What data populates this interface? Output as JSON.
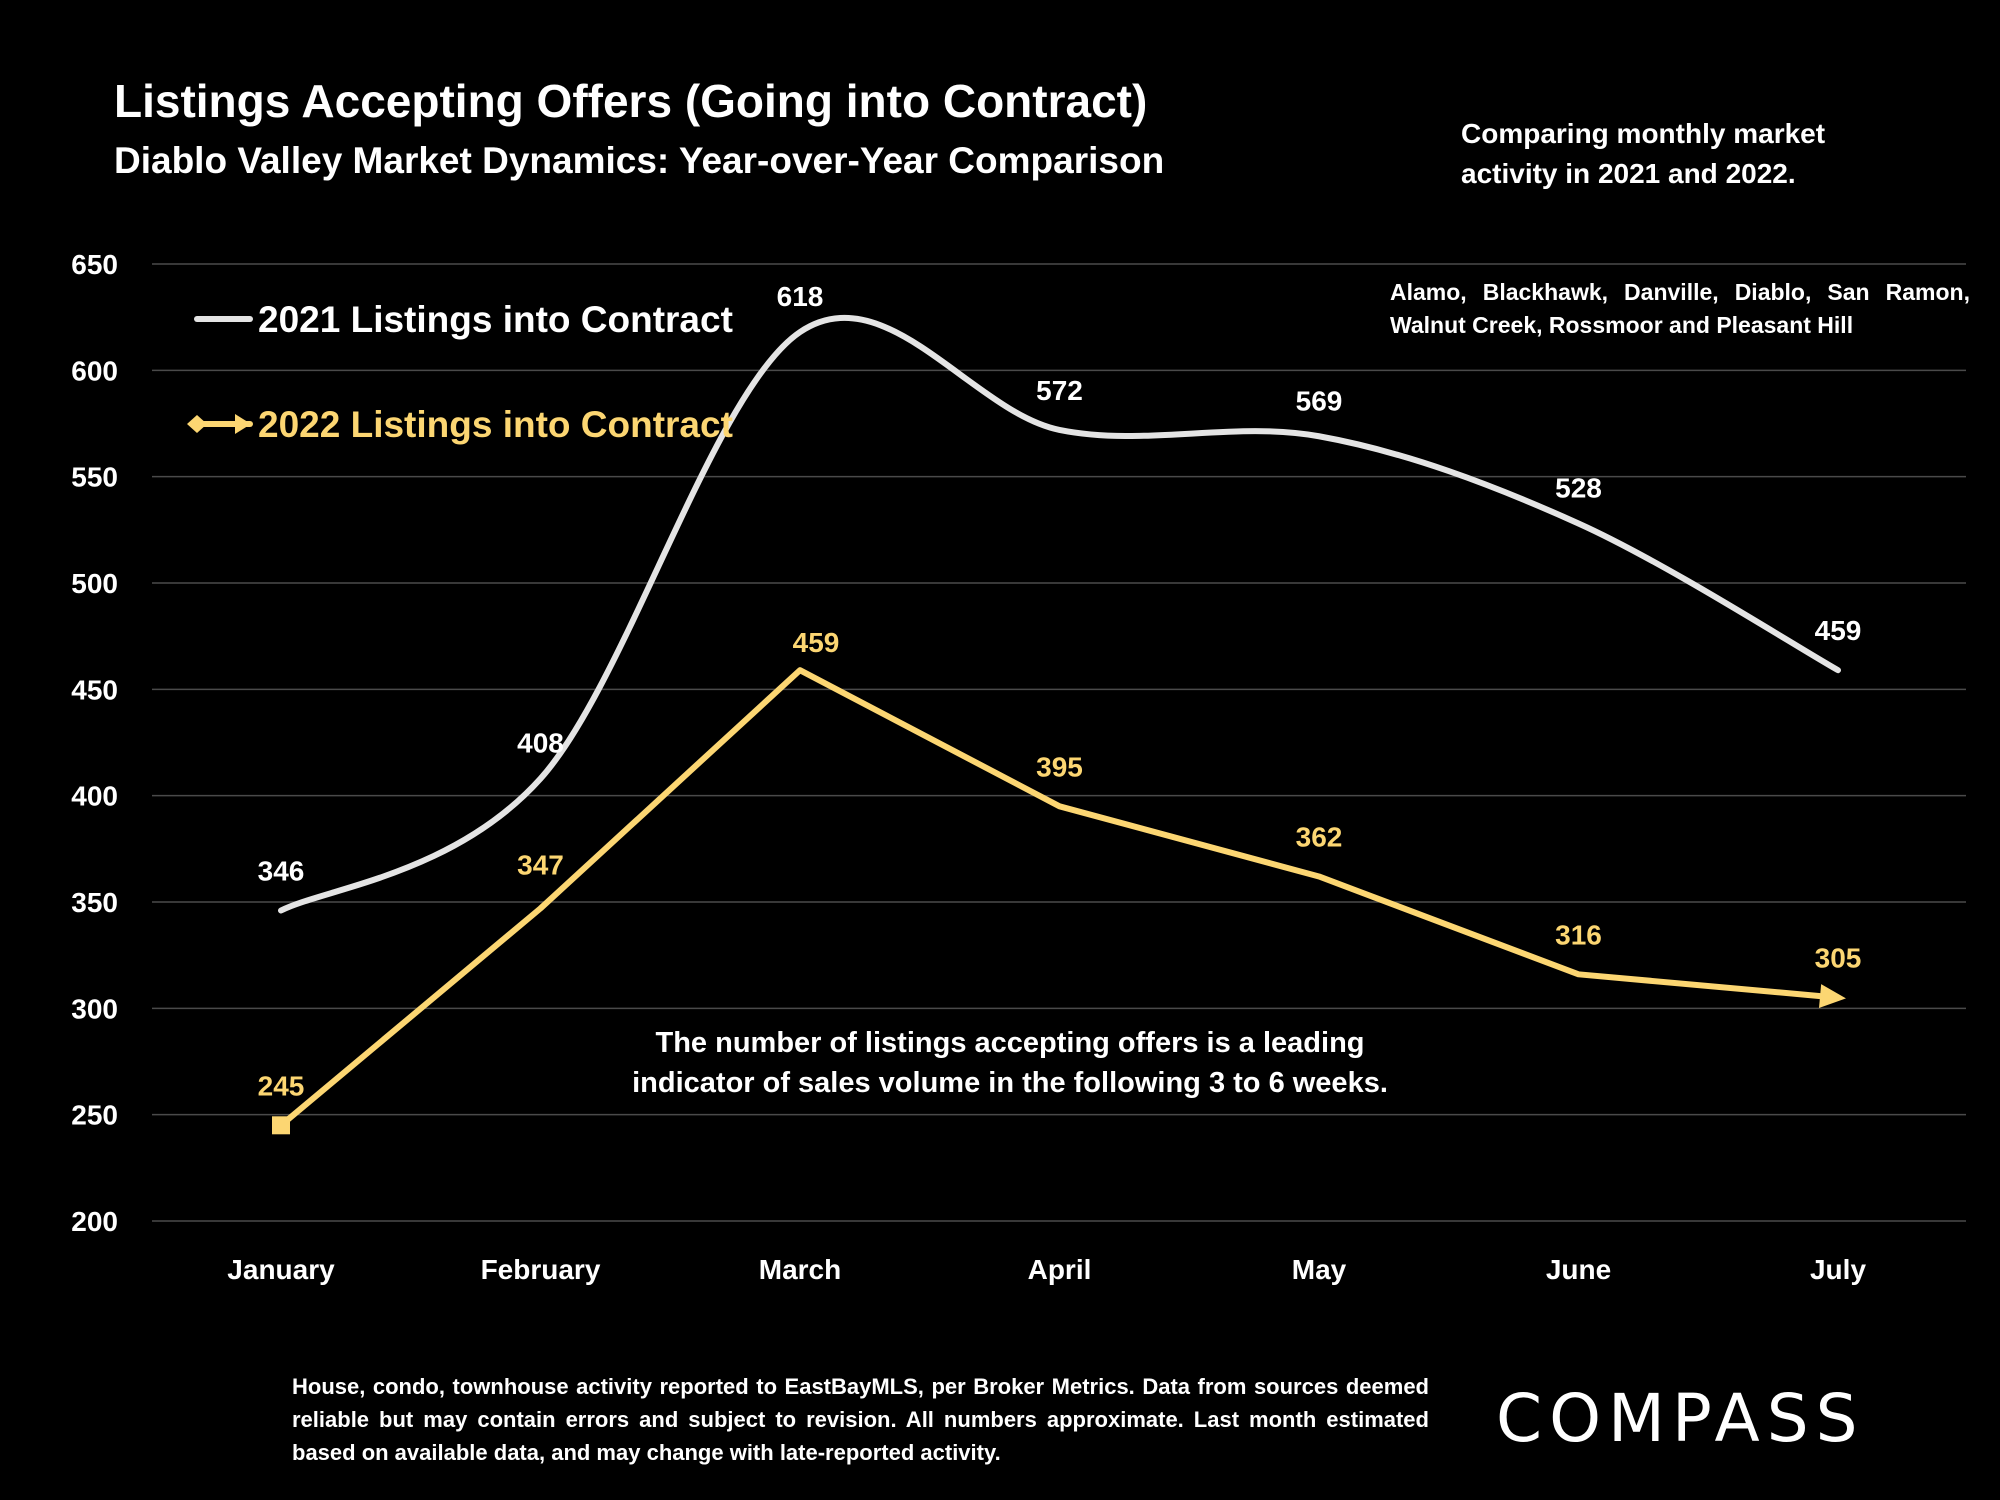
{
  "header": {
    "title": "Listings Accepting Offers (Going into Contract)",
    "subtitle": "Diablo Valley Market Dynamics: Year-over-Year Comparison",
    "intro_note": "Comparing monthly market activity in 2021 and 2022.",
    "area_note": "Alamo, Blackhawk, Danville, Diablo, San Ramon, Walnut Creek, Rossmoor and Pleasant Hill"
  },
  "footer": {
    "footnote": "House, condo, townhouse activity reported to EastBayMLS, per Broker Metrics. Data from sources deemed reliable but may contain errors and subject to revision. All numbers approximate. Last month estimated based on available data, and may change with late-reported activity.",
    "logo_text": "COMPASS"
  },
  "colors": {
    "background": "#000000",
    "series_2021": "#e4e4e4",
    "series_2022": "#fcd672",
    "grid": "#4a4a4a",
    "text": "#ffffff"
  },
  "chart_data": {
    "type": "line",
    "categories": [
      "January",
      "February",
      "March",
      "April",
      "May",
      "June",
      "July"
    ],
    "series": [
      {
        "name": "2021 Listings into Contract",
        "values": [
          346,
          408,
          618,
          572,
          569,
          528,
          459
        ],
        "smooth": true,
        "color": "#e4e4e4"
      },
      {
        "name": "2022 Listings into Contract",
        "values": [
          245,
          347,
          459,
          395,
          362,
          316,
          305
        ],
        "smooth": false,
        "color": "#fcd672"
      }
    ],
    "ylim": [
      200,
      650
    ],
    "yticks": [
      200,
      250,
      300,
      350,
      400,
      450,
      500,
      550,
      600,
      650
    ],
    "grid": true,
    "legend": "top-left",
    "annotation": [
      "The number of listings accepting offers is a leading",
      "indicator of sales volume in the following 3 to 6 weeks."
    ]
  }
}
